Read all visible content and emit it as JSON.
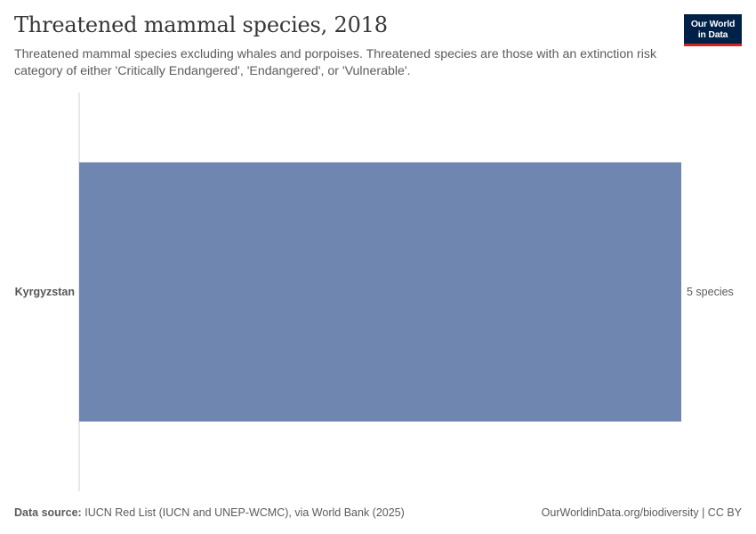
{
  "header": {
    "title": "Threatened mammal species, 2018",
    "subtitle": "Threatened mammal species excluding whales and porpoises. Threatened species are those with an extinction risk category of either 'Critically Endangered', 'Endangered', or 'Vulnerable'.",
    "logo_line1": "Our World",
    "logo_line2": "in Data"
  },
  "colors": {
    "bar": "#6f87b0",
    "axis": "#d0d0d0",
    "logo_bg": "#002147",
    "logo_accent": "#ce261e"
  },
  "chart_data": {
    "type": "bar",
    "orientation": "horizontal",
    "categories": [
      "Kyrgyzstan"
    ],
    "values": [
      5
    ],
    "value_labels": [
      "5 species"
    ],
    "xlim": [
      0,
      5
    ]
  },
  "footer": {
    "source_label": "Data source:",
    "source_text": "IUCN Red List (IUCN and UNEP-WCMC), via World Bank (2025)",
    "url_text": "OurWorldinData.org/biodiversity | CC BY"
  }
}
